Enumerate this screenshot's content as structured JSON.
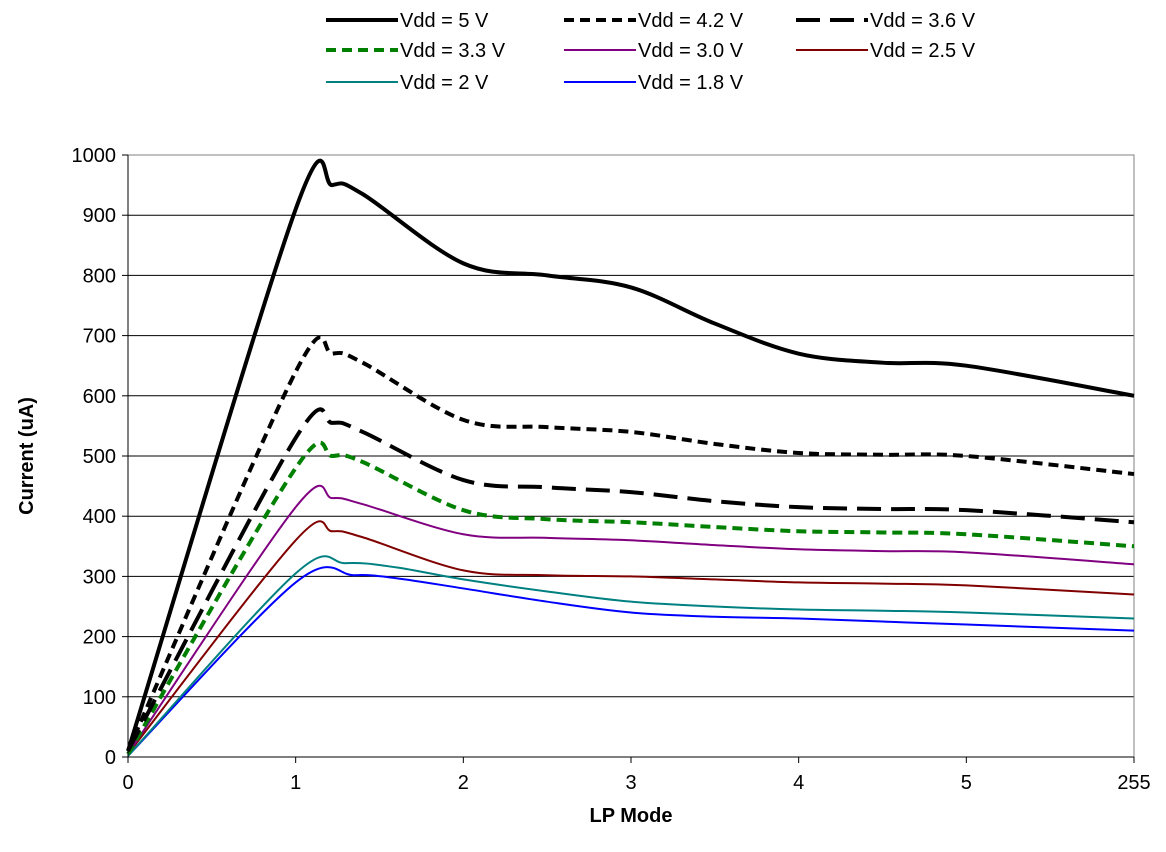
{
  "chart_data": {
    "type": "line",
    "xlabel": "LP Mode",
    "ylabel": "Current (uA)",
    "categories": [
      "0",
      "1",
      "2",
      "3",
      "4",
      "5",
      "255"
    ],
    "ylim": [
      0,
      1000
    ],
    "yticks": [
      0,
      100,
      200,
      300,
      400,
      500,
      600,
      700,
      800,
      900,
      1000
    ],
    "grid": "horizontal",
    "legend_position": "top",
    "series": [
      {
        "name": "Vdd = 5 V",
        "color": "#000000",
        "dash": "solid",
        "width": "thick",
        "x": [
          0,
          1,
          1.22,
          1.4,
          2,
          2.5,
          3,
          3.5,
          4,
          4.5,
          5,
          6
        ],
        "values": [
          10,
          910,
          950,
          935,
          820,
          800,
          780,
          720,
          670,
          655,
          650,
          600
        ]
      },
      {
        "name": "Vdd = 4.2 V",
        "color": "#000000",
        "dash": "short",
        "width": "thick",
        "x": [
          0,
          1,
          1.22,
          1.4,
          2,
          2.5,
          3,
          3.5,
          4,
          4.5,
          5,
          6
        ],
        "values": [
          10,
          640,
          670,
          655,
          560,
          548,
          540,
          520,
          505,
          502,
          500,
          470
        ]
      },
      {
        "name": "Vdd = 3.6 V",
        "color": "#000000",
        "dash": "long",
        "width": "thick",
        "x": [
          0,
          1,
          1.22,
          1.4,
          2,
          2.5,
          3,
          3.5,
          4,
          4.5,
          5,
          6
        ],
        "values": [
          10,
          530,
          555,
          540,
          460,
          448,
          440,
          425,
          415,
          412,
          410,
          390
        ]
      },
      {
        "name": "Vdd = 3.3 V",
        "color": "#008000",
        "dash": "short",
        "width": "thick",
        "x": [
          0,
          1,
          1.22,
          1.4,
          2,
          2.5,
          3,
          3.5,
          4,
          4.5,
          5,
          6
        ],
        "values": [
          5,
          480,
          500,
          490,
          410,
          395,
          390,
          382,
          375,
          373,
          370,
          350
        ]
      },
      {
        "name": "Vdd = 3.0 V",
        "color": "#800080",
        "dash": "solid",
        "width": "thin",
        "x": [
          0,
          1,
          1.22,
          1.4,
          2,
          2.5,
          3,
          3.5,
          4,
          4.5,
          5,
          6
        ],
        "values": [
          5,
          415,
          430,
          420,
          370,
          364,
          360,
          352,
          345,
          342,
          340,
          320
        ]
      },
      {
        "name": "Vdd = 2.5 V",
        "color": "#800000",
        "dash": "solid",
        "width": "thin",
        "x": [
          0,
          1,
          1.22,
          1.4,
          2,
          2.5,
          3,
          3.5,
          4,
          4.5,
          5,
          6
        ],
        "values": [
          5,
          360,
          375,
          365,
          310,
          302,
          300,
          295,
          290,
          288,
          285,
          270
        ]
      },
      {
        "name": "Vdd = 2 V",
        "color": "#008080",
        "dash": "solid",
        "width": "thin",
        "x": [
          0,
          1,
          1.3,
          1.6,
          2,
          2.5,
          3,
          3.5,
          4,
          4.5,
          5,
          6
        ],
        "values": [
          2,
          305,
          322,
          315,
          295,
          275,
          258,
          250,
          245,
          243,
          240,
          230
        ]
      },
      {
        "name": "Vdd = 1.8 V",
        "color": "#0000FF",
        "dash": "solid",
        "width": "thin",
        "x": [
          0,
          1,
          1.35,
          1.6,
          2,
          2.5,
          3,
          3.5,
          4,
          4.5,
          5,
          6
        ],
        "values": [
          2,
          290,
          302,
          297,
          280,
          258,
          240,
          233,
          230,
          225,
          220,
          210
        ]
      }
    ]
  }
}
